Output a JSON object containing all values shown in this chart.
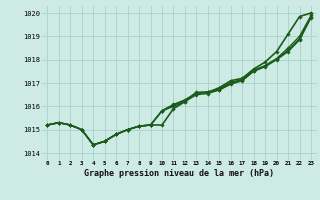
{
  "title": "Graphe pression niveau de la mer (hPa)",
  "ylabel_values": [
    1014,
    1015,
    1016,
    1017,
    1018,
    1019,
    1020
  ],
  "xlim": [
    -0.5,
    23.5
  ],
  "ylim": [
    1013.7,
    1020.3
  ],
  "bg_color": "#ceeae4",
  "grid_color": "#aed4ce",
  "line_color": "#1a5c1a",
  "series": [
    [
      1015.2,
      1015.3,
      1015.2,
      1015.0,
      1014.35,
      1014.5,
      1014.8,
      1015.0,
      1015.15,
      1015.2,
      1015.8,
      1016.0,
      1016.2,
      1016.5,
      1016.55,
      1016.7,
      1016.95,
      1017.1,
      1017.5,
      1017.7,
      1018.0,
      1018.35,
      1018.85,
      1019.8
    ],
    [
      1015.2,
      1015.3,
      1015.2,
      1015.0,
      1014.35,
      1014.5,
      1014.8,
      1015.0,
      1015.15,
      1015.2,
      1015.8,
      1016.05,
      1016.25,
      1016.55,
      1016.6,
      1016.72,
      1016.98,
      1017.12,
      1017.52,
      1017.72,
      1018.02,
      1018.4,
      1018.9,
      1019.85
    ],
    [
      1015.2,
      1015.3,
      1015.2,
      1015.0,
      1014.35,
      1014.5,
      1014.8,
      1015.0,
      1015.15,
      1015.2,
      1015.82,
      1016.08,
      1016.28,
      1016.58,
      1016.62,
      1016.75,
      1017.02,
      1017.15,
      1017.55,
      1017.75,
      1018.05,
      1018.5,
      1019.0,
      1019.9
    ],
    [
      1015.2,
      1015.3,
      1015.2,
      1015.0,
      1014.35,
      1014.5,
      1014.8,
      1015.0,
      1015.15,
      1015.2,
      1015.2,
      1015.9,
      1016.2,
      1016.6,
      1016.6,
      1016.8,
      1017.1,
      1017.2,
      1017.6,
      1017.9,
      1018.35,
      1019.1,
      1019.85,
      1020.0
    ]
  ]
}
